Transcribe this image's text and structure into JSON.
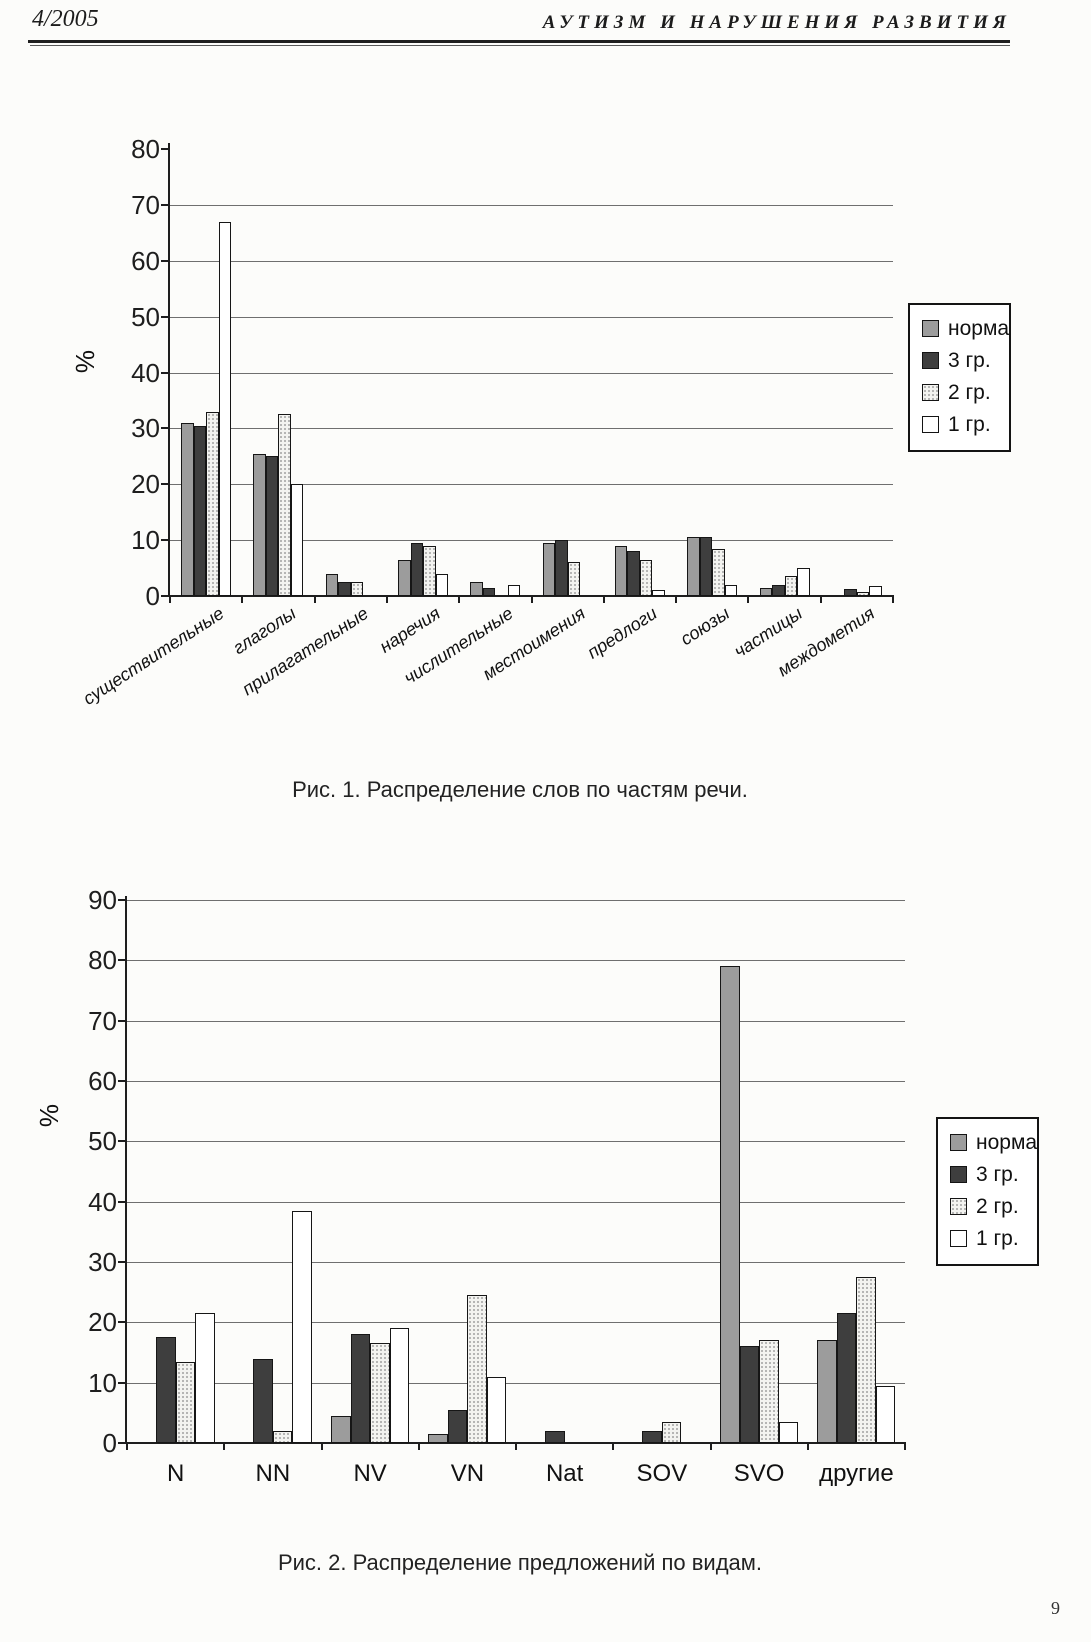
{
  "page": {
    "number": "9"
  },
  "header": {
    "issue": "4/2005",
    "journal": "АУТИЗМ И НАРУШЕНИЯ РАЗВИТИЯ"
  },
  "chart_data": [
    {
      "type": "bar",
      "caption": "Рис. 1. Распределение слов по частям речи.",
      "ylabel": "%",
      "ylim": [
        0,
        80
      ],
      "ytick_step": 10,
      "yticks": [
        0,
        10,
        20,
        30,
        40,
        50,
        60,
        70,
        80
      ],
      "grid": true,
      "legend_position": "right",
      "categories": [
        "существительные",
        "глаголы",
        "прилагательные",
        "наречия",
        "числительные",
        "местоимения",
        "предлоги",
        "союзы",
        "частицы",
        "междометия"
      ],
      "series": [
        {
          "name": "норма",
          "fill": "#9c9c9c",
          "texture": "solid",
          "values": [
            31,
            25.5,
            4,
            6.5,
            2.5,
            9.5,
            9,
            10.5,
            1.5,
            0
          ]
        },
        {
          "name": "3 гр.",
          "fill": "#3e3e3e",
          "texture": "solid",
          "values": [
            30.5,
            25,
            2.5,
            9.5,
            1.5,
            10,
            8,
            10.5,
            2,
            1.2
          ]
        },
        {
          "name": "2 гр.",
          "fill": "#f3f3f0",
          "texture": "dots",
          "values": [
            33,
            32.5,
            2.5,
            9,
            0,
            6,
            6.5,
            8.5,
            3.5,
            0.8
          ]
        },
        {
          "name": "1 гр.",
          "fill": "#ffffff",
          "texture": "solid",
          "values": [
            67,
            20,
            0,
            4,
            2,
            0,
            1,
            2,
            5,
            1.8
          ]
        }
      ]
    },
    {
      "type": "bar",
      "caption": "Рис. 2. Распределение предложений по видам.",
      "ylabel": "%",
      "ylim": [
        0,
        90
      ],
      "ytick_step": 10,
      "yticks": [
        0,
        10,
        20,
        30,
        40,
        50,
        60,
        70,
        80,
        90
      ],
      "grid": true,
      "legend_position": "right",
      "categories": [
        "N",
        "NN",
        "NV",
        "VN",
        "Nat",
        "SOV",
        "SVO",
        "другие"
      ],
      "series": [
        {
          "name": "норма",
          "fill": "#9c9c9c",
          "texture": "solid",
          "values": [
            0,
            0,
            4.5,
            1.5,
            0,
            0,
            79,
            17
          ]
        },
        {
          "name": "3 гр.",
          "fill": "#3e3e3e",
          "texture": "solid",
          "values": [
            17.5,
            14,
            18,
            5.5,
            2,
            2,
            16,
            21.5
          ]
        },
        {
          "name": "2 гр.",
          "fill": "#f3f3f0",
          "texture": "dots",
          "values": [
            13.5,
            2,
            16.5,
            24.5,
            0,
            3.5,
            17,
            27.5
          ]
        },
        {
          "name": "1 гр.",
          "fill": "#ffffff",
          "texture": "solid",
          "values": [
            21.5,
            38.5,
            19,
            11,
            0,
            0,
            3.5,
            9.5
          ]
        }
      ]
    }
  ]
}
